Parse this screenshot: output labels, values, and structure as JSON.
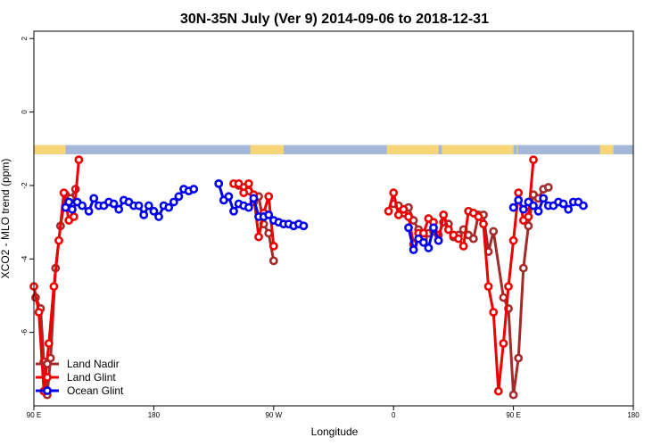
{
  "chart_data": {
    "type": "line",
    "title": "30N-35N July (Ver 9)   2014-09-06 to 2018-12-31",
    "xlabel": "Longitude",
    "ylabel": "XCO2 - MLO trend (ppm)",
    "xlim": [
      -90,
      270
    ],
    "ylim": [
      -8,
      2.2
    ],
    "x_ticks": [
      {
        "value": -90,
        "label": "90 E"
      },
      {
        "value": -18,
        "label": "180"
      },
      {
        "value": 54,
        "label": "90 W"
      },
      {
        "value": 126,
        "label": "0"
      },
      {
        "value": 198,
        "label": "90 E"
      },
      {
        "value": 270,
        "label": "180"
      }
    ],
    "y_ticks": [
      {
        "value": 2,
        "label": "2"
      },
      {
        "value": 0,
        "label": "0"
      },
      {
        "value": -2,
        "label": "-2"
      },
      {
        "value": -4,
        "label": "-4"
      },
      {
        "value": -6,
        "label": "-6"
      }
    ],
    "grid": false,
    "legend_position": "bottom-left",
    "land_ocean_band": {
      "y_top": -0.9,
      "y_bottom": -1.15,
      "ocean_color": "#a3b8d8",
      "land_color": "#f9d57a",
      "land_ranges": [
        [
          -90,
          -71
        ],
        [
          40,
          60
        ],
        [
          122,
          153
        ],
        [
          155,
          198
        ],
        [
          200,
          200
        ],
        [
          250,
          258
        ]
      ]
    },
    "series": [
      {
        "name": "Land Nadir",
        "color": "#a52a2a",
        "segments": [
          [
            [
              -89,
              -5.05
            ],
            [
              -86,
              -5.35
            ],
            [
              -84,
              -6.8
            ],
            [
              -82,
              -7.7
            ],
            [
              -80,
              -6.7
            ],
            [
              -77,
              -4.25
            ],
            [
              -74,
              -3.1
            ],
            [
              -71,
              -2.25
            ],
            [
              -68,
              -2.35
            ],
            [
              -65,
              -2.1
            ]
          ],
          [
            [
              33,
              -2.0
            ],
            [
              36,
              -2.05
            ],
            [
              39,
              -2.15
            ],
            [
              42,
              -2.45
            ],
            [
              45,
              -2.3
            ],
            [
              48,
              -3.05
            ],
            [
              51,
              -3.3
            ],
            [
              54,
              -4.05
            ]
          ],
          [
            [
              126,
              -2.5
            ],
            [
              129,
              -2.55
            ],
            [
              132,
              -2.75
            ],
            [
              135,
              -2.6
            ],
            [
              138,
              -2.95
            ],
            [
              141,
              -3.2
            ],
            [
              144,
              -3.45
            ],
            [
              147,
              -3.3
            ],
            [
              150,
              -3.25
            ],
            [
              153,
              -3.35
            ],
            [
              156,
              -3.0
            ],
            [
              159,
              -3.05
            ],
            [
              162,
              -3.4
            ],
            [
              165,
              -3.35
            ],
            [
              168,
              -3.2
            ],
            [
              171,
              -3.35
            ],
            [
              174,
              -3.45
            ],
            [
              177,
              -2.8
            ],
            [
              180,
              -2.8
            ],
            [
              183,
              -3.8
            ],
            [
              186,
              -3.25
            ],
            [
              192,
              -5.05
            ],
            [
              195,
              -5.35
            ],
            [
              198,
              -7.7
            ],
            [
              201,
              -6.7
            ],
            [
              204,
              -4.25
            ],
            [
              207,
              -3.1
            ],
            [
              210,
              -2.25
            ],
            [
              213,
              -2.35
            ],
            [
              216,
              -2.1
            ],
            [
              219,
              -2.05
            ]
          ]
        ]
      },
      {
        "name": "Land Glint",
        "color": "#ee0000",
        "segments": [
          [
            [
              -90,
              -4.75
            ],
            [
              -87,
              -5.45
            ],
            [
              -84,
              -7.6
            ],
            [
              -81,
              -6.3
            ],
            [
              -78,
              -4.75
            ],
            [
              -75,
              -3.5
            ],
            [
              -72,
              -2.2
            ],
            [
              -69,
              -2.95
            ],
            [
              -66,
              -2.85
            ],
            [
              -63,
              -1.3
            ]
          ],
          [
            [
              30,
              -1.95
            ],
            [
              33,
              -1.95
            ],
            [
              36,
              -2.2
            ],
            [
              39,
              -1.95
            ],
            [
              42,
              -2.25
            ],
            [
              45,
              -3.4
            ],
            [
              48,
              -2.75
            ],
            [
              51,
              -2.3
            ],
            [
              54,
              -3.65
            ]
          ],
          [
            [
              123,
              -2.7
            ],
            [
              126,
              -2.2
            ],
            [
              129,
              -2.8
            ],
            [
              132,
              -2.65
            ],
            [
              135,
              -2.85
            ],
            [
              138,
              -3.6
            ],
            [
              141,
              -3.3
            ],
            [
              144,
              -3.3
            ],
            [
              147,
              -2.9
            ],
            [
              150,
              -3.0
            ],
            [
              153,
              -3.5
            ],
            [
              156,
              -2.8
            ],
            [
              159,
              -3.2
            ],
            [
              162,
              -3.35
            ],
            [
              165,
              -3.45
            ],
            [
              168,
              -3.65
            ],
            [
              171,
              -2.7
            ],
            [
              174,
              -2.75
            ],
            [
              177,
              -2.85
            ],
            [
              180,
              -3.05
            ],
            [
              183,
              -4.75
            ],
            [
              186,
              -5.45
            ],
            [
              189,
              -7.6
            ],
            [
              192,
              -6.3
            ],
            [
              195,
              -4.75
            ],
            [
              198,
              -3.5
            ],
            [
              201,
              -2.2
            ],
            [
              204,
              -2.95
            ],
            [
              207,
              -2.85
            ],
            [
              210,
              -1.3
            ]
          ]
        ]
      },
      {
        "name": "Ocean Glint",
        "color": "#0000ee",
        "segments": [
          [
            [
              -71,
              -2.6
            ],
            [
              -69,
              -2.45
            ],
            [
              -67,
              -2.65
            ],
            [
              -64,
              -2.45
            ],
            [
              -61,
              -2.55
            ],
            [
              -57,
              -2.7
            ],
            [
              -54,
              -2.35
            ],
            [
              -51,
              -2.55
            ],
            [
              -48,
              -2.55
            ],
            [
              -45,
              -2.45
            ],
            [
              -42,
              -2.5
            ],
            [
              -39,
              -2.65
            ],
            [
              -36,
              -2.4
            ],
            [
              -33,
              -2.45
            ],
            [
              -30,
              -2.55
            ],
            [
              -27,
              -2.55
            ],
            [
              -24,
              -2.8
            ],
            [
              -21,
              -2.55
            ],
            [
              -18,
              -2.7
            ],
            [
              -15,
              -2.85
            ],
            [
              -12,
              -2.55
            ],
            [
              -9,
              -2.6
            ],
            [
              -6,
              -2.45
            ],
            [
              -3,
              -2.3
            ],
            [
              0,
              -2.1
            ],
            [
              3,
              -2.15
            ],
            [
              6,
              -2.1
            ]
          ],
          [
            [
              21,
              -1.95
            ],
            [
              24,
              -2.4
            ],
            [
              27,
              -2.3
            ],
            [
              30,
              -2.7
            ],
            [
              33,
              -2.5
            ],
            [
              36,
              -2.55
            ],
            [
              39,
              -2.6
            ],
            [
              42,
              -2.35
            ],
            [
              45,
              -2.85
            ],
            [
              48,
              -2.85
            ],
            [
              51,
              -2.8
            ],
            [
              54,
              -2.95
            ],
            [
              57,
              -3.0
            ],
            [
              60,
              -3.05
            ],
            [
              63,
              -3.05
            ],
            [
              66,
              -3.1
            ],
            [
              69,
              -3.05
            ],
            [
              72,
              -3.1
            ]
          ],
          [
            [
              135,
              -3.15
            ],
            [
              138,
              -3.75
            ],
            [
              141,
              -3.45
            ],
            [
              144,
              -3.55
            ],
            [
              147,
              -3.7
            ],
            [
              150,
              -3.15
            ],
            [
              153,
              -3.5
            ]
          ],
          [
            [
              198,
              -2.6
            ],
            [
              201,
              -2.4
            ],
            [
              204,
              -2.65
            ],
            [
              207,
              -2.45
            ],
            [
              210,
              -2.55
            ],
            [
              213,
              -2.7
            ],
            [
              216,
              -2.35
            ],
            [
              219,
              -2.55
            ],
            [
              222,
              -2.55
            ],
            [
              225,
              -2.45
            ],
            [
              228,
              -2.5
            ],
            [
              231,
              -2.65
            ],
            [
              234,
              -2.45
            ],
            [
              237,
              -2.45
            ],
            [
              240,
              -2.55
            ]
          ]
        ]
      }
    ]
  }
}
